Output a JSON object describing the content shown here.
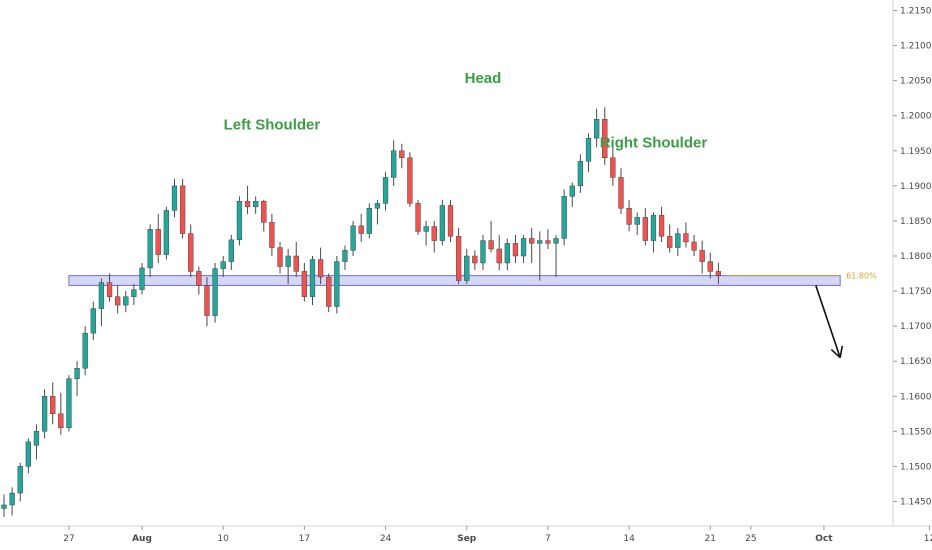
{
  "colors": {
    "bull": "#26a69a",
    "bear": "#ef5350",
    "wick": "#4a4a4a",
    "zone_fill": "#c7c9f5",
    "zone_stroke": "#6a6ee0",
    "annotation": "#3a9e43",
    "fib": "#d4a12c",
    "arrow": "#111111",
    "axis": "#d6d6d6"
  },
  "chart_data": {
    "type": "candlestick",
    "y_range": [
      1.1415,
      1.2165
    ],
    "x_range": [
      0,
      110
    ],
    "y_ticks": [
      "1.21500",
      "1.21000",
      "1.20500",
      "1.20000",
      "1.19500",
      "1.19000",
      "1.18500",
      "1.18000",
      "1.17500",
      "1.17000",
      "1.16500",
      "1.16000",
      "1.15500",
      "1.15000",
      "1.14500"
    ],
    "x_ticks": [
      {
        "label": "27",
        "x": 8,
        "strong": false
      },
      {
        "label": "Aug",
        "x": 17,
        "strong": true
      },
      {
        "label": "10",
        "x": 27,
        "strong": false
      },
      {
        "label": "17",
        "x": 37,
        "strong": false
      },
      {
        "label": "24",
        "x": 47,
        "strong": false
      },
      {
        "label": "Sep",
        "x": 57,
        "strong": true
      },
      {
        "label": "7",
        "x": 67,
        "strong": false
      },
      {
        "label": "14",
        "x": 77,
        "strong": false
      },
      {
        "label": "21",
        "x": 87,
        "strong": false
      },
      {
        "label": "25",
        "x": 92,
        "strong": false
      },
      {
        "label": "Oct",
        "x": 101,
        "strong": true
      },
      {
        "label": "12",
        "x": 114,
        "strong": false
      }
    ],
    "candles": [
      [
        1.144,
        1.146,
        1.1428,
        1.1445
      ],
      [
        1.1445,
        1.147,
        1.143,
        1.1462
      ],
      [
        1.1462,
        1.1505,
        1.145,
        1.15
      ],
      [
        1.15,
        1.154,
        1.149,
        1.1535
      ],
      [
        1.153,
        1.156,
        1.151,
        1.155
      ],
      [
        1.155,
        1.161,
        1.154,
        1.16
      ],
      [
        1.16,
        1.162,
        1.156,
        1.1575
      ],
      [
        1.1575,
        1.1605,
        1.1545,
        1.1555
      ],
      [
        1.1555,
        1.163,
        1.155,
        1.1625
      ],
      [
        1.1625,
        1.165,
        1.16,
        1.164
      ],
      [
        1.164,
        1.17,
        1.163,
        1.169
      ],
      [
        1.169,
        1.1735,
        1.168,
        1.1725
      ],
      [
        1.1725,
        1.1768,
        1.17,
        1.1762
      ],
      [
        1.1762,
        1.1775,
        1.1735,
        1.1742
      ],
      [
        1.1742,
        1.1758,
        1.1718,
        1.173
      ],
      [
        1.173,
        1.175,
        1.172,
        1.1742
      ],
      [
        1.1742,
        1.176,
        1.173,
        1.1752
      ],
      [
        1.1752,
        1.179,
        1.1745,
        1.1783
      ],
      [
        1.1783,
        1.1845,
        1.177,
        1.1838
      ],
      [
        1.1838,
        1.186,
        1.179,
        1.1802
      ],
      [
        1.1802,
        1.187,
        1.1795,
        1.1865
      ],
      [
        1.1865,
        1.191,
        1.1855,
        1.19
      ],
      [
        1.19,
        1.191,
        1.1825,
        1.1832
      ],
      [
        1.1832,
        1.1845,
        1.177,
        1.1778
      ],
      [
        1.1778,
        1.1785,
        1.1745,
        1.1758
      ],
      [
        1.1758,
        1.177,
        1.17,
        1.1715
      ],
      [
        1.1715,
        1.179,
        1.1705,
        1.1782
      ],
      [
        1.1782,
        1.18,
        1.177,
        1.1792
      ],
      [
        1.1792,
        1.183,
        1.178,
        1.1823
      ],
      [
        1.1823,
        1.1885,
        1.1815,
        1.1878
      ],
      [
        1.1878,
        1.19,
        1.186,
        1.187
      ],
      [
        1.187,
        1.1885,
        1.186,
        1.1878
      ],
      [
        1.1878,
        1.188,
        1.1835,
        1.1848
      ],
      [
        1.1848,
        1.186,
        1.18,
        1.1812
      ],
      [
        1.1812,
        1.182,
        1.1775,
        1.1785
      ],
      [
        1.1785,
        1.181,
        1.176,
        1.18
      ],
      [
        1.18,
        1.182,
        1.177,
        1.1778
      ],
      [
        1.1778,
        1.179,
        1.1735,
        1.1742
      ],
      [
        1.1742,
        1.18,
        1.173,
        1.1795
      ],
      [
        1.1795,
        1.1812,
        1.176,
        1.177
      ],
      [
        1.177,
        1.1775,
        1.172,
        1.1728
      ],
      [
        1.1728,
        1.18,
        1.1718,
        1.1792
      ],
      [
        1.1792,
        1.1815,
        1.178,
        1.1808
      ],
      [
        1.1808,
        1.185,
        1.18,
        1.1843
      ],
      [
        1.1843,
        1.186,
        1.182,
        1.1832
      ],
      [
        1.1832,
        1.1875,
        1.1825,
        1.1868
      ],
      [
        1.1868,
        1.188,
        1.1845,
        1.1875
      ],
      [
        1.1875,
        1.192,
        1.1865,
        1.1912
      ],
      [
        1.1912,
        1.1965,
        1.19,
        1.195
      ],
      [
        1.195,
        1.196,
        1.1925,
        1.194
      ],
      [
        1.194,
        1.1948,
        1.187,
        1.1875
      ],
      [
        1.1875,
        1.188,
        1.183,
        1.1835
      ],
      [
        1.1835,
        1.185,
        1.1815,
        1.1842
      ],
      [
        1.1842,
        1.185,
        1.1805,
        1.1822
      ],
      [
        1.1822,
        1.188,
        1.1815,
        1.1872
      ],
      [
        1.1872,
        1.188,
        1.182,
        1.1828
      ],
      [
        1.1828,
        1.184,
        1.176,
        1.1765
      ],
      [
        1.1765,
        1.181,
        1.176,
        1.18
      ],
      [
        1.18,
        1.1808,
        1.178,
        1.179
      ],
      [
        1.179,
        1.183,
        1.178,
        1.1822
      ],
      [
        1.1822,
        1.185,
        1.1805,
        1.181
      ],
      [
        1.181,
        1.183,
        1.178,
        1.179
      ],
      [
        1.179,
        1.1825,
        1.178,
        1.1818
      ],
      [
        1.1818,
        1.183,
        1.179,
        1.18
      ],
      [
        1.18,
        1.183,
        1.179,
        1.1825
      ],
      [
        1.1825,
        1.184,
        1.179,
        1.1818
      ],
      [
        1.1818,
        1.1835,
        1.1765,
        1.1822
      ],
      [
        1.1822,
        1.1838,
        1.181,
        1.1818
      ],
      [
        1.1818,
        1.183,
        1.177,
        1.1825
      ],
      [
        1.1825,
        1.1895,
        1.1815,
        1.1885
      ],
      [
        1.1885,
        1.1905,
        1.187,
        1.19
      ],
      [
        1.19,
        1.1945,
        1.189,
        1.1935
      ],
      [
        1.1935,
        1.1975,
        1.192,
        1.1968
      ],
      [
        1.1968,
        1.201,
        1.1955,
        1.1995
      ],
      [
        1.1995,
        1.2012,
        1.193,
        1.194
      ],
      [
        1.194,
        1.1955,
        1.19,
        1.1912
      ],
      [
        1.1912,
        1.1925,
        1.186,
        1.1868
      ],
      [
        1.1868,
        1.188,
        1.1835,
        1.1845
      ],
      [
        1.1845,
        1.1862,
        1.183,
        1.1855
      ],
      [
        1.1855,
        1.1868,
        1.1815,
        1.1822
      ],
      [
        1.1822,
        1.1862,
        1.1805,
        1.1858
      ],
      [
        1.1858,
        1.187,
        1.182,
        1.1828
      ],
      [
        1.1828,
        1.1845,
        1.1805,
        1.1812
      ],
      [
        1.1812,
        1.184,
        1.18,
        1.1832
      ],
      [
        1.1832,
        1.1848,
        1.1812,
        1.182
      ],
      [
        1.182,
        1.183,
        1.18,
        1.1808
      ],
      [
        1.1808,
        1.1822,
        1.1775,
        1.1792
      ],
      [
        1.1792,
        1.1805,
        1.1768,
        1.1778
      ],
      [
        1.1778,
        1.179,
        1.176,
        1.1772
      ]
    ],
    "zone": {
      "top": 1.1772,
      "bottom": 1.1758,
      "x_start": 8,
      "x_end": 103
    },
    "fib_line": {
      "value": 1.1772,
      "label": "61.80%",
      "x_start": 89,
      "x_end": 103
    },
    "arrow": {
      "from": [
        100,
        1.1758
      ],
      "to": [
        103,
        1.1655
      ]
    },
    "annotations": [
      {
        "text": "Left Shoulder",
        "x": 33,
        "y": 1.198
      },
      {
        "text": "Head",
        "x": 59,
        "y": 1.2047
      },
      {
        "text": "Right Shoulder",
        "x": 80,
        "y": 1.1955
      }
    ]
  }
}
